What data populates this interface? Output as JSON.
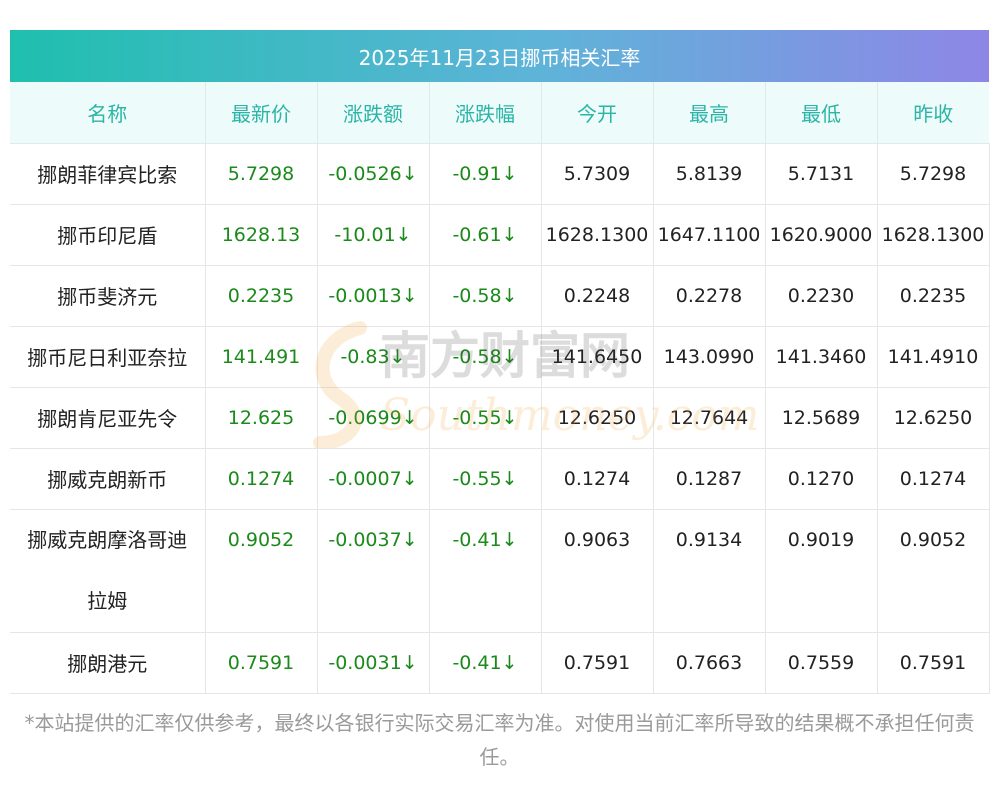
{
  "title": "2025年11月23日挪币相关汇率",
  "headers": [
    "名称",
    "最新价",
    "涨跌额",
    "涨跌幅",
    "今开",
    "最高",
    "最低",
    "昨收"
  ],
  "rows": [
    {
      "name": "挪朗菲律宾比索",
      "latest": "5.7298",
      "change": "-0.0526↓",
      "pct": "-0.91↓",
      "open": "5.7309",
      "high": "5.8139",
      "low": "5.7131",
      "prev": "5.7298"
    },
    {
      "name": "挪币印尼盾",
      "latest": "1628.13",
      "change": "-10.01↓",
      "pct": "-0.61↓",
      "open": "1628.1300",
      "high": "1647.1100",
      "low": "1620.9000",
      "prev": "1628.1300"
    },
    {
      "name": "挪币斐济元",
      "latest": "0.2235",
      "change": "-0.0013↓",
      "pct": "-0.58↓",
      "open": "0.2248",
      "high": "0.2278",
      "low": "0.2230",
      "prev": "0.2235"
    },
    {
      "name": "挪币尼日利亚奈拉",
      "latest": "141.491",
      "change": "-0.83↓",
      "pct": "-0.58↓",
      "open": "141.6450",
      "high": "143.0990",
      "low": "141.3460",
      "prev": "141.4910"
    },
    {
      "name": "挪朗肯尼亚先令",
      "latest": "12.625",
      "change": "-0.0699↓",
      "pct": "-0.55↓",
      "open": "12.6250",
      "high": "12.7644",
      "low": "12.5689",
      "prev": "12.6250"
    },
    {
      "name": "挪威克朗新币",
      "latest": "0.1274",
      "change": "-0.0007↓",
      "pct": "-0.55↓",
      "open": "0.1274",
      "high": "0.1287",
      "low": "0.1270",
      "prev": "0.1274"
    },
    {
      "name_line1": "挪威克朗摩洛哥迪",
      "name_line2": "拉姆",
      "latest": "0.9052",
      "change": "-0.0037↓",
      "pct": "-0.41↓",
      "open": "0.9063",
      "high": "0.9134",
      "low": "0.9019",
      "prev": "0.9052"
    },
    {
      "name": "挪朗港元",
      "latest": "0.7591",
      "change": "-0.0031↓",
      "pct": "-0.41↓",
      "open": "0.7591",
      "high": "0.7663",
      "low": "0.7559",
      "prev": "0.7591"
    }
  ],
  "watermark": {
    "cn": "南方财富网",
    "en": "Southmoney.com"
  },
  "note": "*本站提供的汇率仅供参考，最终以各银行实际交易汇率为准。对使用当前汇率所导致的结果概不承担任何责任。",
  "colors": {
    "accent": "#2bb5a6",
    "change": "#1b8a1b",
    "gradient_start": "#1fbfae",
    "gradient_end": "#8e86e6"
  }
}
